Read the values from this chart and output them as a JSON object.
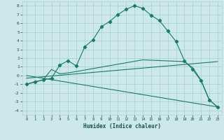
{
  "xlabel": "Humidex (Indice chaleur)",
  "ylabel": "",
  "xlim": [
    -0.5,
    23.5
  ],
  "ylim": [
    -4.5,
    8.5
  ],
  "bg_color": "#cce8e8",
  "grid_color": "#aad4d4",
  "line_color": "#1a7a6e",
  "curve1_x": [
    0,
    1,
    2,
    3,
    4,
    5,
    6,
    7,
    8,
    9,
    10,
    11,
    12,
    13,
    14,
    15,
    16,
    17,
    18,
    19,
    20,
    21,
    22,
    23
  ],
  "curve1_y": [
    -1.0,
    -0.7,
    -0.5,
    -0.3,
    1.2,
    1.7,
    1.1,
    3.3,
    4.1,
    5.6,
    6.2,
    7.0,
    7.6,
    8.0,
    7.7,
    6.9,
    6.3,
    5.1,
    3.9,
    1.7,
    0.7,
    -0.6,
    -2.8,
    -3.6
  ],
  "curve2_x": [
    0,
    2,
    3,
    4,
    5,
    14,
    19,
    20,
    21,
    22,
    23
  ],
  "curve2_y": [
    -1.0,
    -0.5,
    0.7,
    0.2,
    0.3,
    1.8,
    1.6,
    0.9,
    -0.5,
    -2.8,
    -3.6
  ],
  "line1_x": [
    0,
    23
  ],
  "line1_y": [
    -0.3,
    1.6
  ],
  "line2_x": [
    0,
    23
  ],
  "line2_y": [
    0.0,
    -3.6
  ],
  "xticks": [
    0,
    1,
    2,
    3,
    4,
    5,
    6,
    7,
    8,
    9,
    10,
    11,
    12,
    13,
    14,
    15,
    16,
    17,
    18,
    19,
    20,
    21,
    22,
    23
  ],
  "yticks": [
    -4,
    -3,
    -2,
    -1,
    0,
    1,
    2,
    3,
    4,
    5,
    6,
    7,
    8
  ]
}
